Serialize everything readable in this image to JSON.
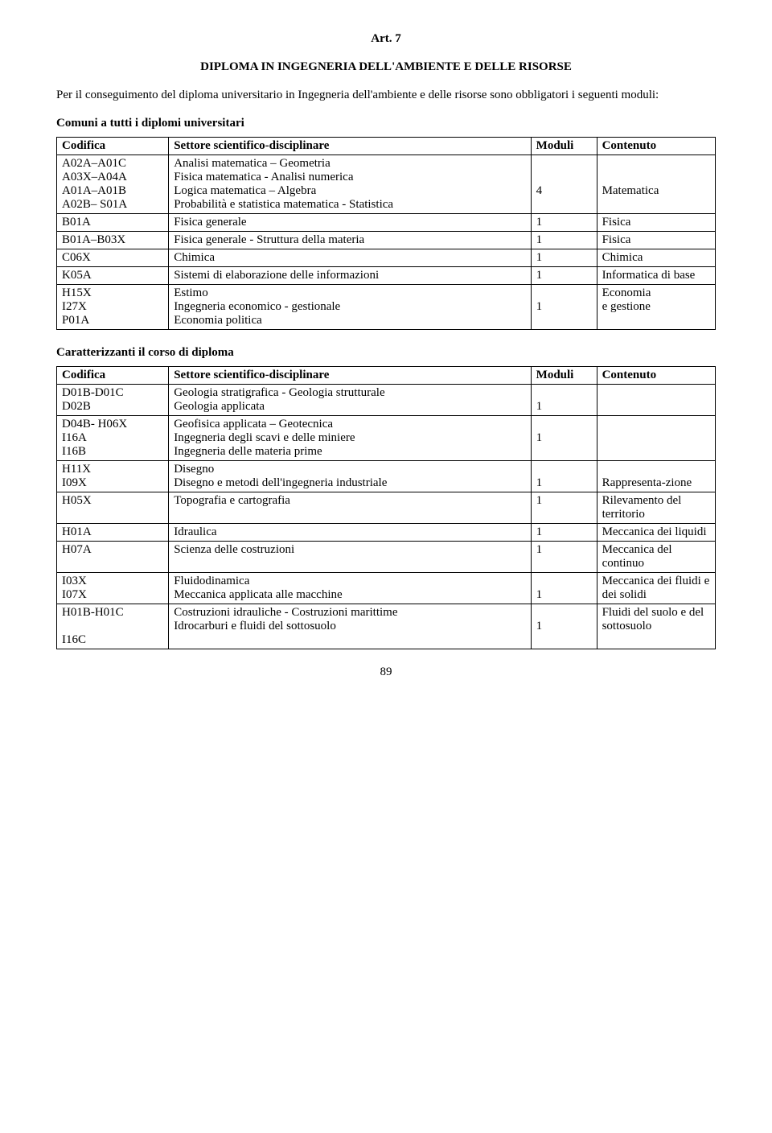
{
  "art_title": "Art. 7",
  "subtitle": "DIPLOMA IN INGEGNERIA DELL'AMBIENTE E DELLE RISORSE",
  "intro": "Per il conseguimento del diploma universitario in Ingegneria dell'ambiente e delle risorse sono obbligatori i seguenti moduli:",
  "section1_label": "Comuni a tutti i diplomi universitari",
  "headers": {
    "codifica": "Codifica",
    "settore": "Settore scientifico-disciplinare",
    "moduli": "Moduli",
    "contenuto": "Contenuto"
  },
  "table1": [
    {
      "cod": "A02A–A01C\nA03X–A04A\nA01A–A01B\nA02B– S01A",
      "set": "Analisi matematica – Geometria\nFisica matematica - Analisi numerica\nLogica matematica – Algebra\nProbabilità e statistica matematica - Statistica",
      "mod": "\n\n4",
      "con": "\n\nMatematica"
    },
    {
      "cod": "B01A",
      "set": "Fisica generale",
      "mod": "1",
      "con": "Fisica"
    },
    {
      "cod": "B01A–B03X",
      "set": "Fisica generale - Struttura della materia",
      "mod": "1",
      "con": "Fisica"
    },
    {
      "cod": "C06X",
      "set": "Chimica",
      "mod": "1",
      "con": "Chimica"
    },
    {
      "cod": "K05A",
      "set": "Sistemi di elaborazione delle informazioni",
      "mod": "1",
      "con": "Informatica di base"
    },
    {
      "cod": "H15X\nI27X\nP01A",
      "set": "Estimo\nIngegneria economico - gestionale\nEconomia politica",
      "mod": "\n1",
      "con": "Economia\ne gestione"
    }
  ],
  "section2_label": "Caratterizzanti il corso di diploma",
  "table2": [
    {
      "cod": "D01B-D01C\nD02B",
      "set": "Geologia stratigrafica - Geologia strutturale\nGeologia applicata",
      "mod": "\n1",
      "con": ""
    },
    {
      "cod": "D04B- H06X\nI16A\nI16B",
      "set": "Geofisica applicata – Geotecnica\nIngegneria degli scavi e delle miniere\nIngegneria delle materia prime",
      "mod": "\n1",
      "con": ""
    },
    {
      "cod": "H11X\nI09X",
      "set": "Disegno\nDisegno e metodi dell'ingegneria industriale",
      "mod": "\n1",
      "con": "\nRappresenta-zione"
    },
    {
      "cod": "H05X",
      "set": "Topografia e cartografia",
      "mod": "1",
      "con": "Rilevamento del territorio"
    },
    {
      "cod": "H01A",
      "set": "Idraulica",
      "mod": "1",
      "con": "Meccanica dei liquidi"
    },
    {
      "cod": "H07A",
      "set": "Scienza delle costruzioni",
      "mod": "1",
      "con": "Meccanica del continuo"
    },
    {
      "cod": "I03X\nI07X",
      "set": "Fluidodinamica\nMeccanica applicata alle macchine",
      "mod": "\n1",
      "con": "Meccanica dei fluidi e dei solidi"
    },
    {
      "cod": "H01B-H01C\n\nI16C",
      "set": "Costruzioni idrauliche - Costruzioni marittime\nIdrocarburi e fluidi del sottosuolo",
      "mod": "\n1",
      "con": "Fluidi del suolo e del sottosuolo"
    }
  ],
  "page_number": "89"
}
